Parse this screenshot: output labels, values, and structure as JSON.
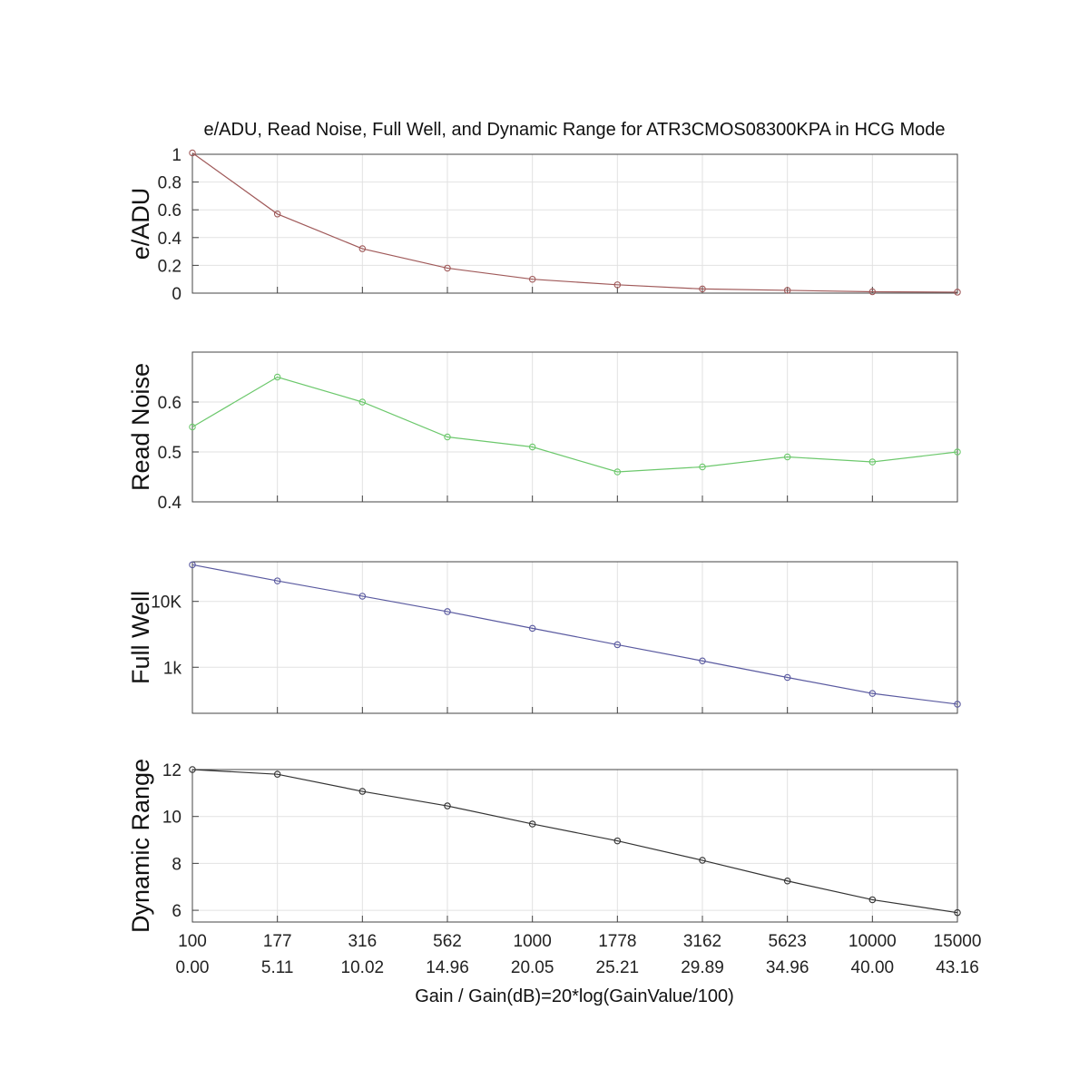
{
  "title": "e/ADU, Read Noise, Full Well, and Dynamic Range for ATR3CMOS08300KPA in HCG Mode",
  "xlabel": "Gain / Gain(dB)=20*log(GainValue/100)",
  "x_gain_labels": [
    "100",
    "177",
    "316",
    "562",
    "1000",
    "1778",
    "3162",
    "5623",
    "10000",
    "15000"
  ],
  "x_db_labels": [
    "0.00",
    "5.11",
    "10.02",
    "14.96",
    "20.05",
    "25.21",
    "29.89",
    "34.96",
    "40.00",
    "43.16"
  ],
  "colors": {
    "e_adu": "#a05a5a",
    "read_noise": "#6cc86c",
    "full_well": "#5a5aa0",
    "dynamic_range": "#333333",
    "grid": "#e2e2e2",
    "axes": "#444444"
  },
  "chart_data": [
    {
      "type": "line",
      "ylabel": "e/ADU",
      "ylim": [
        0,
        1
      ],
      "yscale": "linear",
      "yticks": [
        0,
        0.2,
        0.4,
        0.6,
        0.8,
        1
      ],
      "ytick_labels": [
        "0",
        "0.2",
        "0.4",
        "0.6",
        "0.8",
        "1"
      ],
      "grid": true,
      "x": [
        100,
        177,
        316,
        562,
        1000,
        1778,
        3162,
        5623,
        10000,
        15000
      ],
      "values": [
        1.01,
        0.57,
        0.32,
        0.18,
        0.1,
        0.06,
        0.03,
        0.02,
        0.01,
        0.007
      ]
    },
    {
      "type": "line",
      "ylabel": "Read Noise",
      "ylim": [
        0.4,
        0.7
      ],
      "yscale": "linear",
      "yticks": [
        0.4,
        0.5,
        0.6
      ],
      "ytick_labels": [
        "0.4",
        "0.5",
        "0.6"
      ],
      "grid": true,
      "x": [
        100,
        177,
        316,
        562,
        1000,
        1778,
        3162,
        5623,
        10000,
        15000
      ],
      "values": [
        0.55,
        0.65,
        0.6,
        0.53,
        0.51,
        0.46,
        0.47,
        0.49,
        0.48,
        0.5
      ]
    },
    {
      "type": "line",
      "ylabel": "Full Well",
      "ylim": [
        200,
        40000
      ],
      "yscale": "log",
      "yticks": [
        1000,
        10000
      ],
      "ytick_labels": [
        "1k",
        "10K"
      ],
      "grid": true,
      "x": [
        100,
        177,
        316,
        562,
        1000,
        1778,
        3162,
        5623,
        10000,
        15000
      ],
      "values": [
        36000,
        20500,
        12000,
        7000,
        3900,
        2200,
        1250,
        700,
        400,
        275
      ]
    },
    {
      "type": "line",
      "ylabel": "Dynamic Range",
      "ylim": [
        5.5,
        12
      ],
      "yscale": "linear",
      "yticks": [
        6,
        8,
        10,
        12
      ],
      "ytick_labels": [
        "6",
        "8",
        "10",
        "12"
      ],
      "grid": true,
      "x": [
        100,
        177,
        316,
        562,
        1000,
        1778,
        3162,
        5623,
        10000,
        15000
      ],
      "values": [
        12.0,
        11.8,
        11.07,
        10.45,
        9.68,
        8.96,
        8.13,
        7.25,
        6.45,
        5.9
      ]
    }
  ]
}
